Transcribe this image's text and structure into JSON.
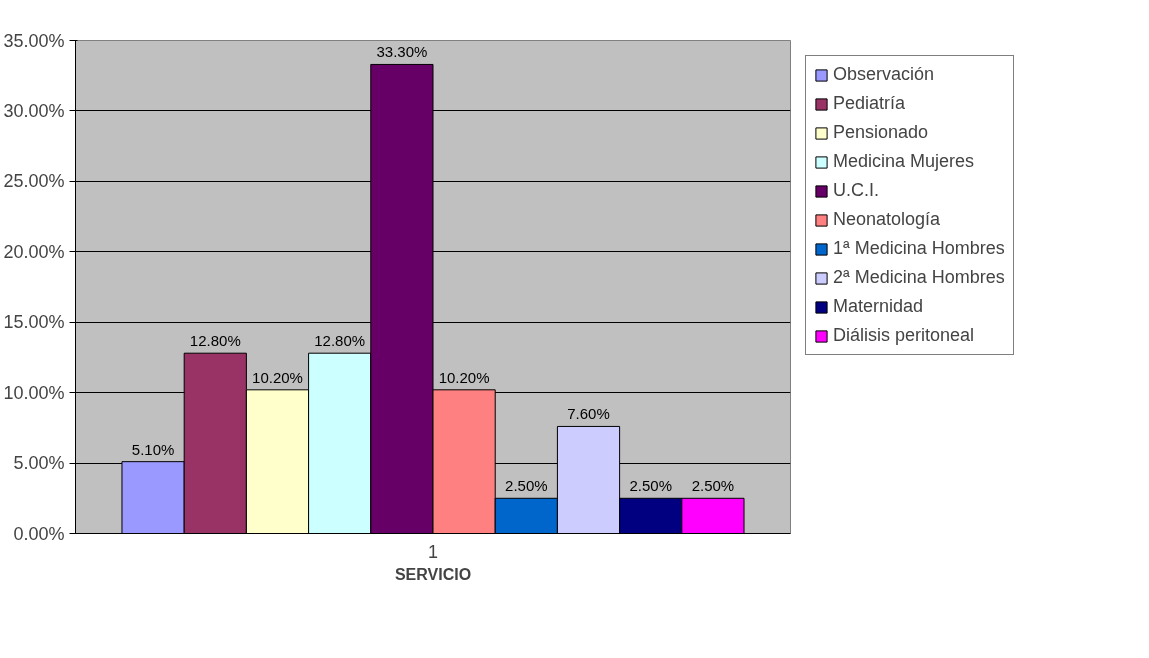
{
  "chart_data": {
    "type": "bar",
    "categories": [
      "1"
    ],
    "xlabel": "SERVICIO",
    "ylim": [
      0,
      35
    ],
    "yticks": [
      {
        "value": 0,
        "label": "0.00%"
      },
      {
        "value": 5,
        "label": "5.00%"
      },
      {
        "value": 10,
        "label": "10.00%"
      },
      {
        "value": 15,
        "label": "15.00%"
      },
      {
        "value": 20,
        "label": "20.00%"
      },
      {
        "value": 25,
        "label": "25.00%"
      },
      {
        "value": 30,
        "label": "30.00%"
      },
      {
        "value": 35,
        "label": "35.00%"
      }
    ],
    "grid": "y",
    "legend": "right",
    "series": [
      {
        "name": "Observación",
        "color": "#9999ff",
        "values": [
          5.1
        ],
        "value_labels": [
          "5.10%"
        ]
      },
      {
        "name": "Pediatría",
        "color": "#993366",
        "values": [
          12.8
        ],
        "value_labels": [
          "12.80%"
        ]
      },
      {
        "name": "Pensionado",
        "color": "#ffffcc",
        "values": [
          10.2
        ],
        "value_labels": [
          "10.20%"
        ]
      },
      {
        "name": "Medicina Mujeres",
        "color": "#ccffff",
        "values": [
          12.8
        ],
        "value_labels": [
          "12.80%"
        ]
      },
      {
        "name": "U.C.I.",
        "color": "#660066",
        "values": [
          33.3
        ],
        "value_labels": [
          "33.30%"
        ]
      },
      {
        "name": "Neonatología",
        "color": "#ff8080",
        "values": [
          10.2
        ],
        "value_labels": [
          "10.20%"
        ]
      },
      {
        "name": "1ª Medicina Hombres",
        "color": "#0066cc",
        "values": [
          2.5
        ],
        "value_labels": [
          "2.50%"
        ]
      },
      {
        "name": "2ª Medicina Hombres",
        "color": "#ccccff",
        "values": [
          7.6
        ],
        "value_labels": [
          "7.60%"
        ]
      },
      {
        "name": "Maternidad",
        "color": "#000080",
        "values": [
          2.5
        ],
        "value_labels": [
          "2.50%"
        ]
      },
      {
        "name": "Diálisis peritoneal",
        "color": "#ff00ff",
        "values": [
          2.5
        ],
        "value_labels": [
          "2.50%"
        ]
      }
    ]
  }
}
